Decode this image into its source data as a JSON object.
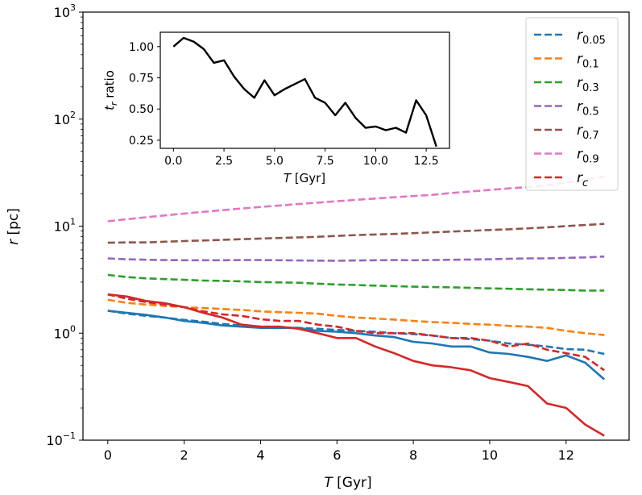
{
  "chart_data": [
    {
      "type": "line",
      "scale_y": "log",
      "xlabel_italic": "T",
      "xlabel_unit": "[Gyr]",
      "ylabel_italic": "r",
      "ylabel_unit": "[pc]",
      "xlim": [
        -0.65,
        13.65
      ],
      "ylim": [
        0.1,
        1000
      ],
      "x_ticks": [
        0,
        2,
        4,
        6,
        8,
        10,
        12
      ],
      "x_tick_labels": [
        "0",
        "2",
        "4",
        "6",
        "8",
        "10",
        "12"
      ],
      "y_ticks": [
        0.1,
        1,
        10,
        100,
        1000
      ],
      "y_tick_bases": [
        "10",
        "10",
        "10",
        "10",
        "10"
      ],
      "y_tick_exps": [
        "−1",
        "0",
        "1",
        "2",
        "3"
      ],
      "x": [
        0,
        0.5,
        1,
        1.5,
        2,
        2.5,
        3,
        3.5,
        4,
        4.5,
        5,
        5.5,
        6,
        6.5,
        7,
        7.5,
        8,
        8.5,
        9,
        9.5,
        10,
        10.5,
        11,
        11.5,
        12,
        12.5,
        13
      ],
      "legend": {
        "location": "upper right",
        "entries": [
          {
            "base": "r",
            "sub": "0.05",
            "color": "#1f77b4"
          },
          {
            "base": "r",
            "sub": "0.1",
            "color": "#ff7f0e"
          },
          {
            "base": "r",
            "sub": "0.3",
            "color": "#2ca02c"
          },
          {
            "base": "r",
            "sub": "0.5",
            "color": "#9467bd"
          },
          {
            "base": "r",
            "sub": "0.7",
            "color": "#8c564b"
          },
          {
            "base": "r",
            "sub": "0.9",
            "color": "#e377c2"
          },
          {
            "base": "r",
            "sub": "c",
            "color": "#d62728"
          }
        ]
      },
      "series": [
        {
          "name": "r_0.05",
          "style": "dashed",
          "color": "#1f77b4",
          "values": [
            1.62,
            1.52,
            1.45,
            1.4,
            1.33,
            1.28,
            1.22,
            1.18,
            1.15,
            1.13,
            1.12,
            1.1,
            1.07,
            1.05,
            1.03,
            1.0,
            0.98,
            0.95,
            0.9,
            0.88,
            0.85,
            0.8,
            0.78,
            0.75,
            0.71,
            0.7,
            0.64
          ]
        },
        {
          "name": "r_0.1",
          "style": "dashed",
          "color": "#ff7f0e",
          "values": [
            2.05,
            1.92,
            1.85,
            1.8,
            1.75,
            1.72,
            1.68,
            1.65,
            1.6,
            1.57,
            1.55,
            1.52,
            1.45,
            1.4,
            1.37,
            1.34,
            1.3,
            1.27,
            1.25,
            1.22,
            1.2,
            1.17,
            1.15,
            1.12,
            1.05,
            1.0,
            0.96
          ]
        },
        {
          "name": "r_0.3",
          "style": "dashed",
          "color": "#2ca02c",
          "values": [
            3.5,
            3.35,
            3.25,
            3.2,
            3.15,
            3.1,
            3.08,
            3.05,
            3.0,
            2.98,
            2.96,
            2.9,
            2.85,
            2.82,
            2.78,
            2.75,
            2.72,
            2.7,
            2.68,
            2.65,
            2.62,
            2.6,
            2.57,
            2.55,
            2.53,
            2.5,
            2.5
          ]
        },
        {
          "name": "r_0.5",
          "style": "dashed",
          "color": "#9467bd",
          "values": [
            5.0,
            4.9,
            4.85,
            4.82,
            4.8,
            4.8,
            4.8,
            4.82,
            4.82,
            4.8,
            4.78,
            4.76,
            4.75,
            4.78,
            4.8,
            4.82,
            4.8,
            4.82,
            4.85,
            4.88,
            4.9,
            4.95,
            5.0,
            5.0,
            5.05,
            5.1,
            5.2
          ]
        },
        {
          "name": "r_0.7",
          "style": "dashed",
          "color": "#8c564b",
          "values": [
            7.0,
            7.05,
            7.05,
            7.15,
            7.25,
            7.35,
            7.45,
            7.55,
            7.65,
            7.75,
            7.85,
            7.95,
            8.1,
            8.25,
            8.35,
            8.45,
            8.6,
            8.75,
            8.9,
            9.05,
            9.2,
            9.35,
            9.55,
            9.75,
            10.0,
            10.25,
            10.5
          ]
        },
        {
          "name": "r_0.9",
          "style": "dashed",
          "color": "#e377c2",
          "values": [
            11.1,
            11.6,
            12.1,
            12.6,
            13.1,
            13.6,
            14.1,
            14.6,
            15.1,
            15.6,
            16.1,
            16.6,
            17.1,
            17.6,
            18.1,
            18.6,
            19.1,
            19.6,
            20.4,
            21.1,
            21.8,
            22.5,
            23.2,
            24.0,
            25.5,
            27.0,
            29.0
          ]
        },
        {
          "name": "r_c",
          "style": "dashed",
          "color": "#d62728",
          "values": [
            2.3,
            2.1,
            1.95,
            1.85,
            1.75,
            1.6,
            1.5,
            1.45,
            1.35,
            1.3,
            1.3,
            1.2,
            1.15,
            1.05,
            1.0,
            1.0,
            1.0,
            0.95,
            0.9,
            0.9,
            0.85,
            0.75,
            0.8,
            0.7,
            0.65,
            0.6,
            0.45
          ]
        },
        {
          "name": "r_0.05 (solid)",
          "style": "solid",
          "color": "#1f77b4",
          "values": [
            1.62,
            1.55,
            1.48,
            1.4,
            1.3,
            1.25,
            1.18,
            1.15,
            1.12,
            1.12,
            1.12,
            1.05,
            1.03,
            1.0,
            0.95,
            0.92,
            0.83,
            0.8,
            0.75,
            0.75,
            0.66,
            0.64,
            0.6,
            0.55,
            0.62,
            0.53,
            0.37
          ]
        },
        {
          "name": "r_c (solid)",
          "style": "solid",
          "color": "#d62728",
          "values": [
            2.3,
            2.2,
            2.0,
            1.9,
            1.75,
            1.55,
            1.4,
            1.2,
            1.15,
            1.15,
            1.1,
            1.0,
            0.9,
            0.9,
            0.75,
            0.65,
            0.55,
            0.5,
            0.48,
            0.45,
            0.38,
            0.35,
            0.32,
            0.22,
            0.2,
            0.14,
            0.11
          ]
        }
      ]
    },
    {
      "type": "line",
      "role": "inset",
      "ylabel_base": "t",
      "ylabel_sub": "r",
      "ylabel_suffix": " ratio",
      "xlabel_italic": "T",
      "xlabel_unit": "[Gyr]",
      "xlim": [
        -0.65,
        13.65
      ],
      "ylim": [
        0.185,
        1.115
      ],
      "x_ticks": [
        0,
        2.5,
        5,
        7.5,
        10,
        12.5
      ],
      "x_tick_labels": [
        "0.0",
        "2.5",
        "5.0",
        "7.5",
        "10.0",
        "12.5"
      ],
      "y_ticks": [
        0.25,
        0.5,
        0.75,
        1.0
      ],
      "y_tick_labels": [
        "0.25",
        "0.50",
        "0.75",
        "1.00"
      ],
      "series": [
        {
          "name": "t_r ratio",
          "color": "#000000",
          "x": [
            0,
            0.5,
            1,
            1.5,
            2,
            2.5,
            3,
            3.5,
            4,
            4.5,
            5,
            5.5,
            6,
            6.5,
            7,
            7.5,
            8,
            8.5,
            9,
            9.5,
            10,
            10.5,
            11,
            11.5,
            12,
            12.5,
            13
          ],
          "values": [
            1.0,
            1.07,
            1.04,
            0.98,
            0.87,
            0.89,
            0.76,
            0.66,
            0.59,
            0.73,
            0.61,
            0.66,
            0.7,
            0.74,
            0.59,
            0.55,
            0.45,
            0.55,
            0.43,
            0.35,
            0.36,
            0.33,
            0.35,
            0.31,
            0.57,
            0.45,
            0.2
          ]
        }
      ]
    }
  ]
}
